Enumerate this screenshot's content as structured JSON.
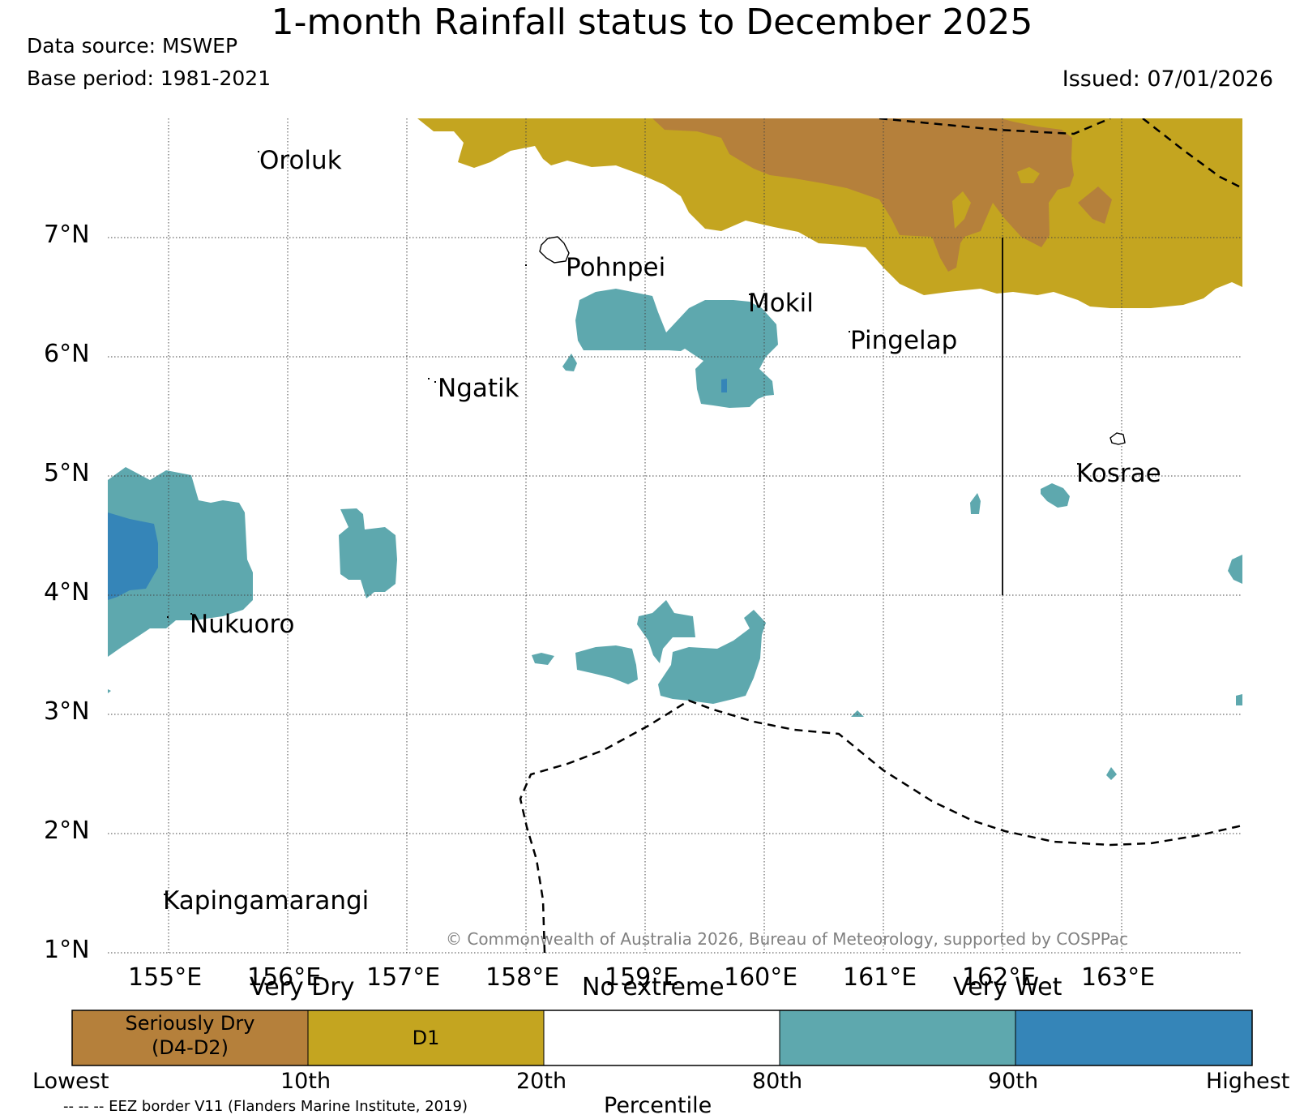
{
  "header": {
    "title": "1-month Rainfall status to December 2025",
    "data_source": "Data source: MSWEP",
    "base_period": "Base period: 1981-2021",
    "issued": "Issued: 07/01/2026"
  },
  "map": {
    "lat_labels": [
      "7°N",
      "6°N",
      "5°N",
      "4°N",
      "3°N",
      "2°N",
      "1°N"
    ],
    "lon_labels": [
      "155°E",
      "156°E",
      "157°E",
      "158°E",
      "159°E",
      "160°E",
      "161°E",
      "162°E",
      "163°E"
    ],
    "places": [
      "Oroluk",
      "Pohnpei",
      "Mokil",
      "Pingelap",
      "Ngatik",
      "Kosrae",
      "Nukuoro",
      "Kapingamarangi"
    ],
    "copyright": "© Commonwealth of Australia 2026, Bureau of Meteorology, supported by COSPPac"
  },
  "legend": {
    "categories": [
      "Very Dry",
      "No extreme",
      "Very Wet"
    ],
    "class_seriously_dry": "Seriously Dry",
    "class_seriously_dry_code": "(D4-D2)",
    "class_d1": "D1",
    "ticks": [
      "Lowest",
      "10th",
      "20th",
      "80th",
      "90th",
      "Highest"
    ],
    "axis_label": "Percentile",
    "eez_note": "-- -- -- EEZ border V11 (Flanders Marine Institute, 2019)"
  },
  "colors": {
    "seriously_dry": "#b5803b",
    "d1": "#c4a520",
    "no_extreme": "#ffffff",
    "very_wet": "#5ea8ae",
    "highest": "#3585b8"
  }
}
